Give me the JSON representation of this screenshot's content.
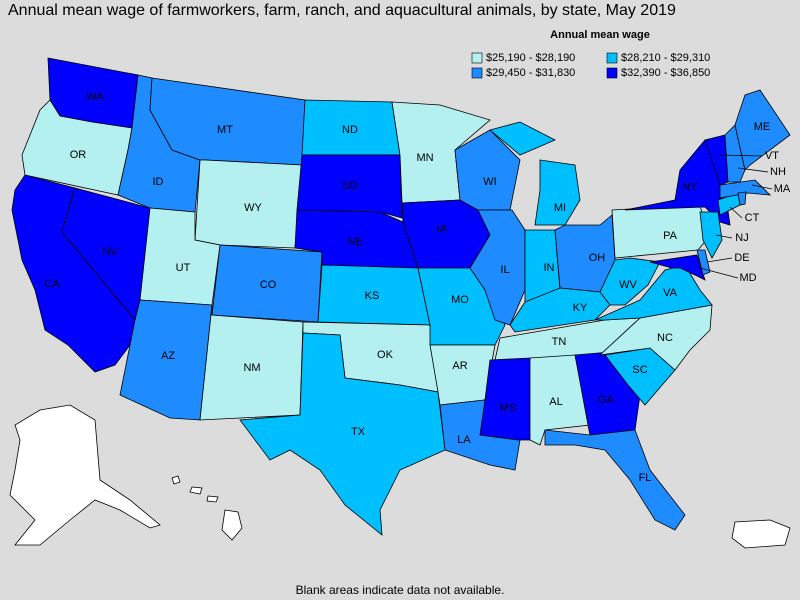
{
  "title": "Annual mean wage of farmworkers, farm, ranch, and aquacultural animals, by state, May 2019",
  "legend": {
    "title": "Annual mean wage",
    "items": [
      {
        "label": "$25,190 - $28,190",
        "color": "#b3f0ef"
      },
      {
        "label": "$28,210 - $29,310",
        "color": "#00bfff"
      },
      {
        "label": "$29,450 - $31,830",
        "color": "#1e8cff"
      },
      {
        "label": "$32,390 - $36,850",
        "color": "#0000ff"
      }
    ]
  },
  "states": [
    {
      "label": "WA",
      "class": 3
    },
    {
      "label": "OR",
      "class": 0
    },
    {
      "label": "CA",
      "class": 3
    },
    {
      "label": "NV",
      "class": 3
    },
    {
      "label": "ID",
      "class": 2
    },
    {
      "label": "MT",
      "class": 2
    },
    {
      "label": "WY",
      "class": 0
    },
    {
      "label": "UT",
      "class": 0
    },
    {
      "label": "AZ",
      "class": 2
    },
    {
      "label": "NM",
      "class": 0
    },
    {
      "label": "CO",
      "class": 2
    },
    {
      "label": "ND",
      "class": 1
    },
    {
      "label": "SD",
      "class": 3
    },
    {
      "label": "NE",
      "class": 3
    },
    {
      "label": "KS",
      "class": 1
    },
    {
      "label": "OK",
      "class": 0
    },
    {
      "label": "TX",
      "class": 1
    },
    {
      "label": "MN",
      "class": 0
    },
    {
      "label": "IA",
      "class": 3
    },
    {
      "label": "MO",
      "class": 1
    },
    {
      "label": "AR",
      "class": 0
    },
    {
      "label": "LA",
      "class": 2
    },
    {
      "label": "WI",
      "class": 2
    },
    {
      "label": "IL",
      "class": 2
    },
    {
      "label": "MI",
      "class": 1
    },
    {
      "label": "IN",
      "class": 1
    },
    {
      "label": "OH",
      "class": 2
    },
    {
      "label": "KY",
      "class": 1
    },
    {
      "label": "TN",
      "class": 0
    },
    {
      "label": "MS",
      "class": 3
    },
    {
      "label": "AL",
      "class": 0
    },
    {
      "label": "GA",
      "class": 3
    },
    {
      "label": "FL",
      "class": 2
    },
    {
      "label": "SC",
      "class": 1
    },
    {
      "label": "NC",
      "class": 0
    },
    {
      "label": "VA",
      "class": 1
    },
    {
      "label": "WV",
      "class": 1
    },
    {
      "label": "PA",
      "class": 0
    },
    {
      "label": "NY",
      "class": 3
    },
    {
      "label": "MD",
      "class": 3
    },
    {
      "label": "DE",
      "class": 2
    },
    {
      "label": "NJ",
      "class": 1
    },
    {
      "label": "CT",
      "class": 1
    },
    {
      "label": "MA",
      "class": 2
    },
    {
      "label": "VT",
      "class": 3
    },
    {
      "label": "NH",
      "class": 2
    },
    {
      "label": "ME",
      "class": 2
    },
    {
      "class": 2
    }
  ],
  "note": "Blank areas indicate data not available."
}
